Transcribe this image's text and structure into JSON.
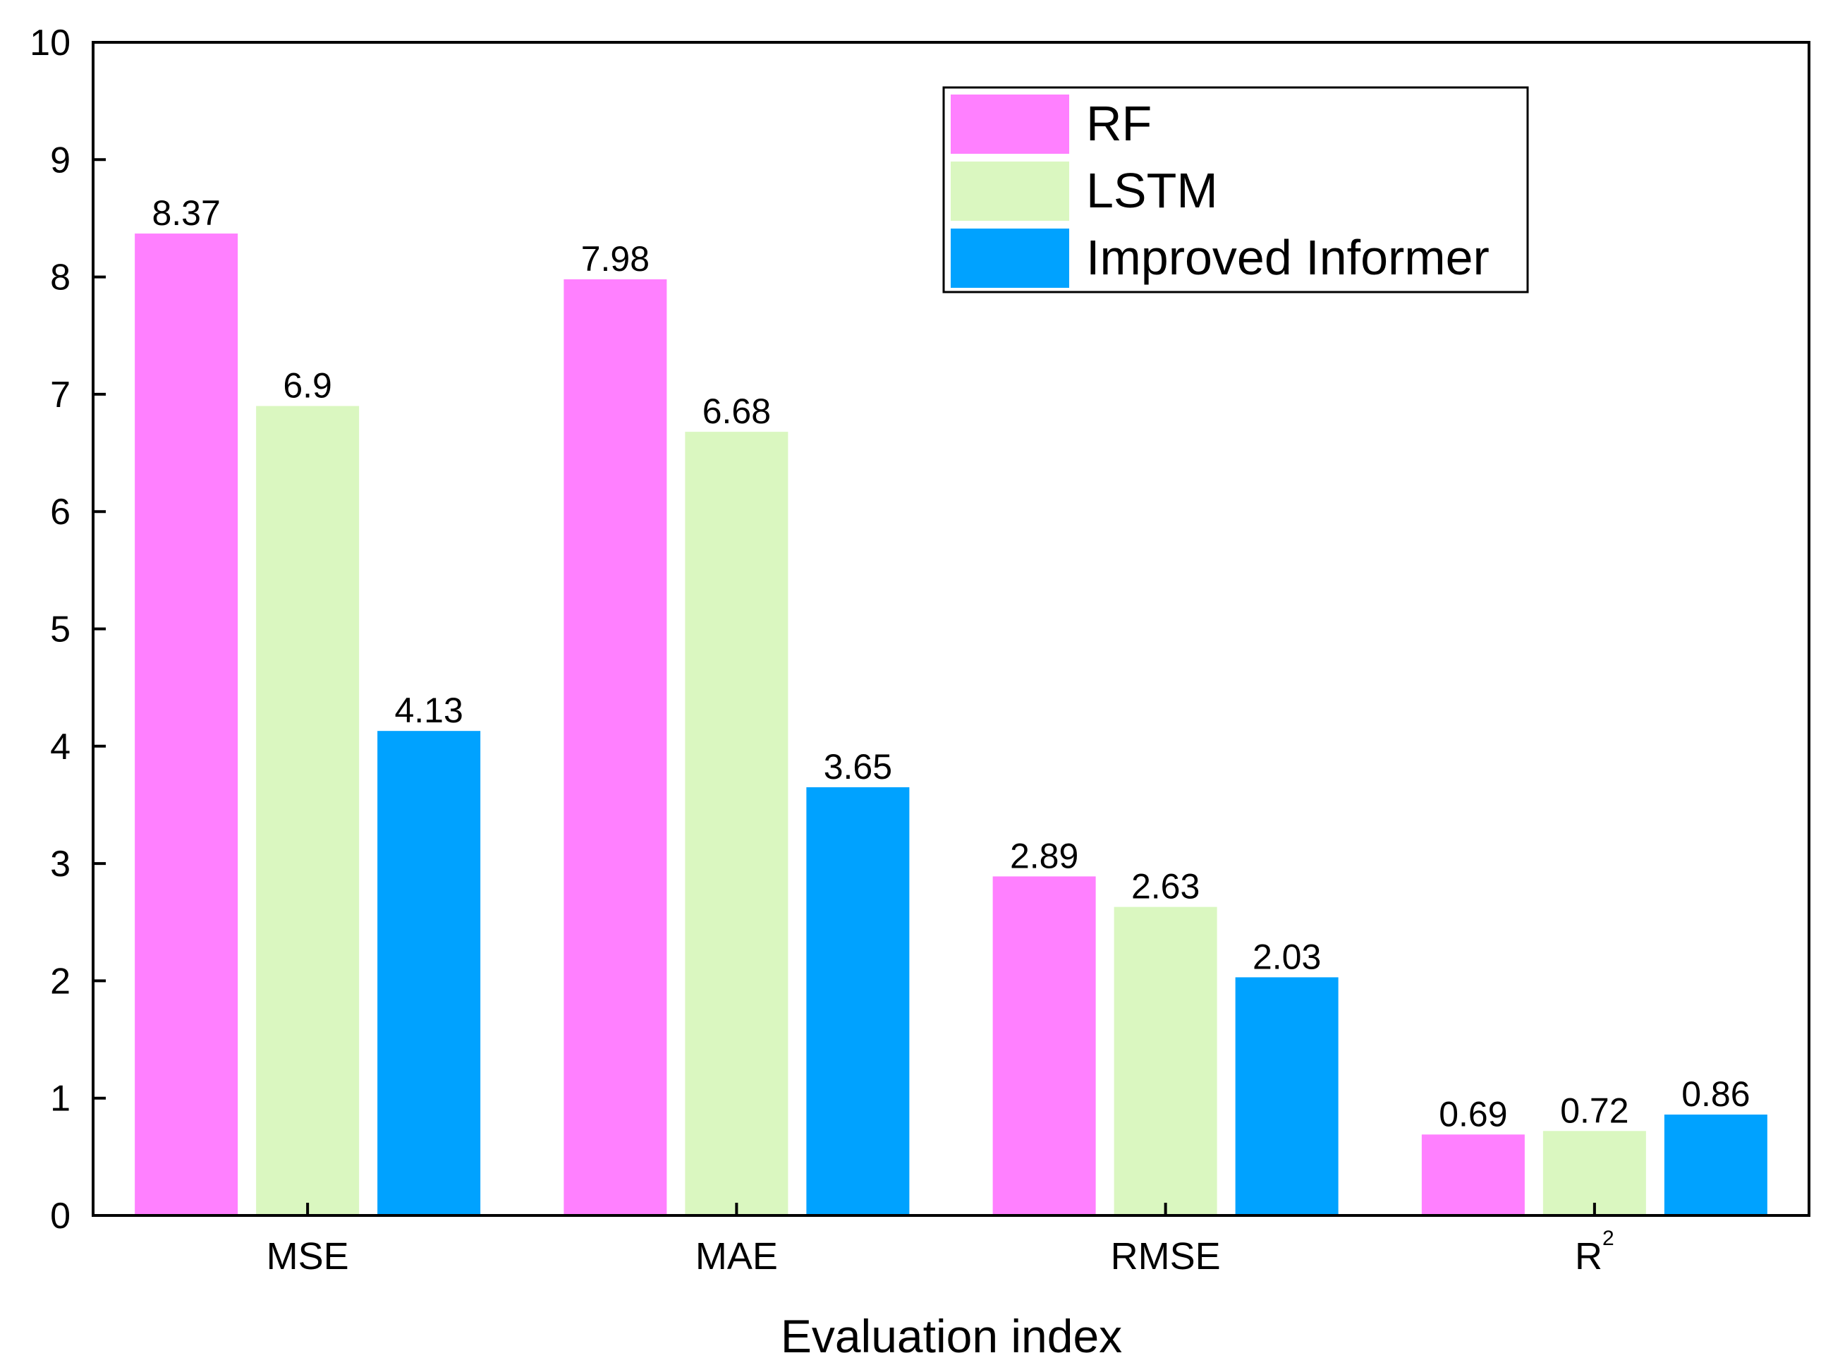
{
  "chart_data": {
    "type": "bar",
    "title": "",
    "xlabel": "Evaluation index",
    "ylabel": "",
    "ylim": [
      0,
      10
    ],
    "yticks": [
      "0",
      "1",
      "2",
      "3",
      "4",
      "5",
      "6",
      "7",
      "8",
      "9",
      "10"
    ],
    "categories": [
      {
        "base": "MSE",
        "sup": ""
      },
      {
        "base": "MAE",
        "sup": ""
      },
      {
        "base": "RMSE",
        "sup": ""
      },
      {
        "base": "R",
        "sup": "2"
      }
    ],
    "series": [
      {
        "name": "RF",
        "color": "#FF80FF",
        "values": [
          8.37,
          7.98,
          2.89,
          0.69
        ],
        "labels": [
          "8.37",
          "7.98",
          "2.89",
          "0.69"
        ]
      },
      {
        "name": "LSTM",
        "color": "#DAF7C0",
        "values": [
          6.9,
          6.68,
          2.63,
          0.72
        ],
        "labels": [
          "6.9",
          "6.68",
          "2.63",
          "0.72"
        ]
      },
      {
        "name": "Improved Informer",
        "color": "#00A2FF",
        "values": [
          4.13,
          3.65,
          2.03,
          0.86
        ],
        "labels": [
          "4.13",
          "3.65",
          "2.03",
          "0.86"
        ]
      }
    ],
    "legend_position": "top-right",
    "grid": false
  }
}
